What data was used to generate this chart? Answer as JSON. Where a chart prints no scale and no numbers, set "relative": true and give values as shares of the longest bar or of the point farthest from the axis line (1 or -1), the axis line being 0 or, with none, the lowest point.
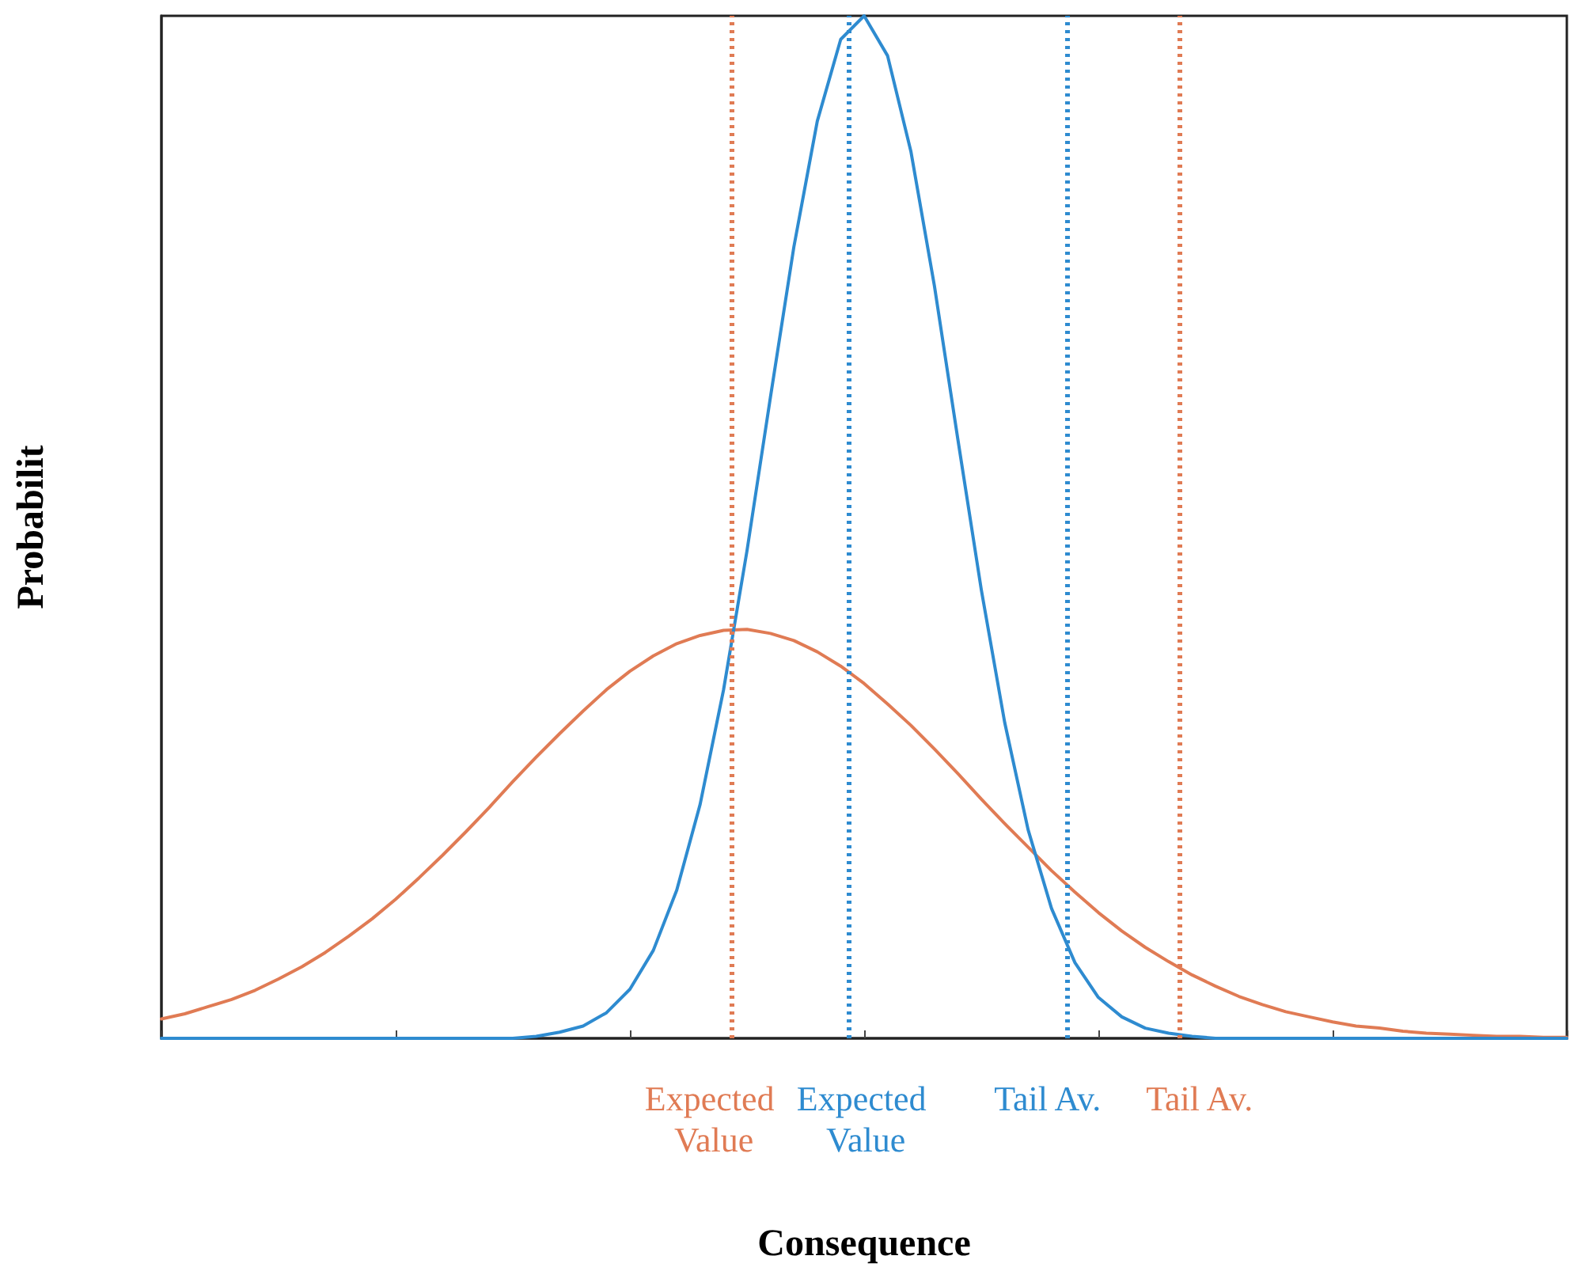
{
  "chart_data": {
    "type": "line",
    "relative": true,
    "xlabel": "Consequence",
    "ylabel": "Probabilit",
    "tick_labels": false,
    "grid": false,
    "marker": "none",
    "line_style": "solid",
    "categories": [
      null,
      null,
      null,
      null,
      null,
      null,
      null,
      null,
      null,
      null,
      null,
      null,
      null,
      null,
      null,
      null,
      null,
      null,
      null,
      null,
      null,
      null,
      null,
      null,
      null,
      null,
      null,
      null,
      null,
      null,
      null,
      null,
      null,
      null,
      null,
      null,
      null,
      null,
      null,
      null,
      null,
      null,
      null,
      null,
      null,
      null,
      null,
      null,
      null,
      null,
      null,
      null,
      null,
      null,
      null,
      null,
      null,
      null,
      null,
      null,
      null
    ],
    "series": [
      {
        "color": "#e07b54",
        "values": [
          0.019,
          0.024,
          0.031,
          0.038,
          0.047,
          0.058,
          0.07,
          0.084,
          0.1,
          0.117,
          0.136,
          0.157,
          0.179,
          0.202,
          0.226,
          0.251,
          0.275,
          0.298,
          0.32,
          0.341,
          0.359,
          0.374,
          0.386,
          0.394,
          0.399,
          0.4,
          0.396,
          0.389,
          0.378,
          0.364,
          0.347,
          0.327,
          0.306,
          0.283,
          0.259,
          0.234,
          0.21,
          0.187,
          0.164,
          0.143,
          0.123,
          0.105,
          0.089,
          0.075,
          0.062,
          0.051,
          0.041,
          0.033,
          0.026,
          0.021,
          0.016,
          0.012,
          0.01,
          0.007,
          0.005,
          0.004,
          0.003,
          0.002,
          0.002,
          0.001,
          0.001
        ]
      },
      {
        "color": "#2e8bd0",
        "values": [
          0,
          0,
          0,
          0,
          0,
          0,
          0,
          0,
          0,
          0,
          0,
          0,
          0,
          0,
          0,
          0,
          0.002,
          0.006,
          0.012,
          0.025,
          0.048,
          0.086,
          0.145,
          0.229,
          0.341,
          0.477,
          0.627,
          0.774,
          0.897,
          0.977,
          1.0,
          0.961,
          0.867,
          0.736,
          0.586,
          0.439,
          0.309,
          0.204,
          0.127,
          0.074,
          0.04,
          0.021,
          0.01,
          0.005,
          0.002,
          0,
          0,
          0,
          0,
          0,
          0,
          0,
          0,
          0,
          0,
          0,
          0,
          0,
          0,
          0,
          0
        ]
      }
    ],
    "annotations": [
      "Expected Value",
      "Expected Value",
      "Tail Av.",
      "Tail Av."
    ]
  }
}
